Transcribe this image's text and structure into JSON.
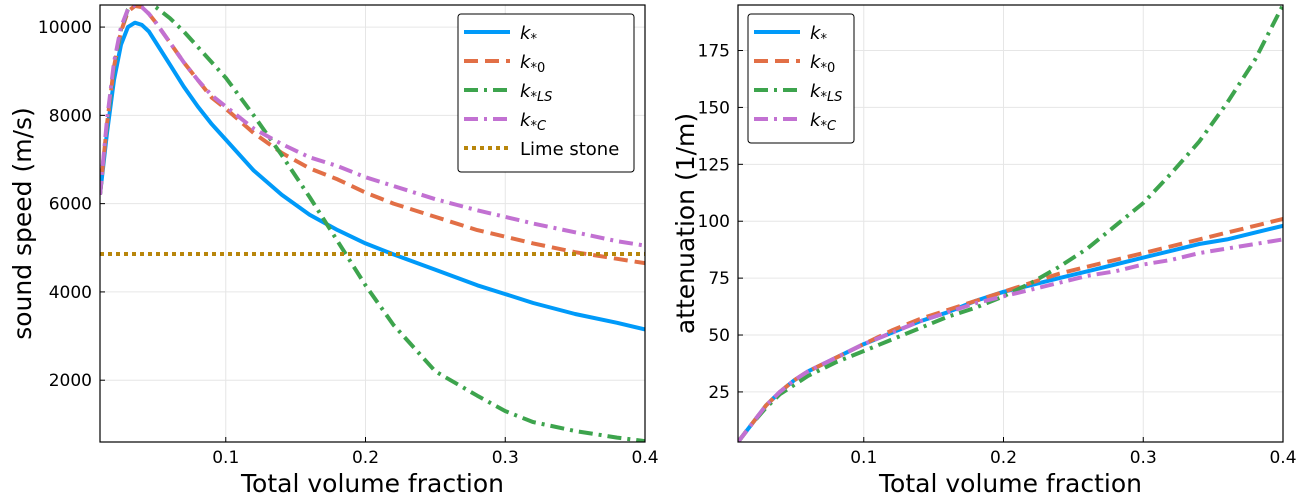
{
  "chart_data": [
    {
      "type": "line",
      "xlabel": "Total volume fraction",
      "ylabel": "sound speed (m/s)",
      "xlim": [
        0.01,
        0.4
      ],
      "ylim": [
        600,
        10500
      ],
      "xticks": [
        0.1,
        0.2,
        0.3,
        0.4
      ],
      "xtick_labels": [
        "0.1",
        "0.2",
        "0.3",
        "0.4"
      ],
      "yticks": [
        2000,
        4000,
        6000,
        8000,
        10000
      ],
      "ytick_labels": [
        "2000",
        "4000",
        "6000",
        "8000",
        "10000"
      ],
      "grid": true,
      "legend_position": "top-right",
      "series": [
        {
          "name": "k",
          "sub": "*",
          "color": "#009af9",
          "dash": "solid",
          "x": [
            0.01,
            0.015,
            0.02,
            0.025,
            0.03,
            0.035,
            0.04,
            0.045,
            0.05,
            0.06,
            0.07,
            0.08,
            0.09,
            0.1,
            0.12,
            0.14,
            0.16,
            0.18,
            0.2,
            0.22,
            0.25,
            0.28,
            0.3,
            0.32,
            0.35,
            0.38,
            0.4
          ],
          "y": [
            6200,
            7600,
            8800,
            9600,
            10000,
            10100,
            10050,
            9900,
            9650,
            9150,
            8650,
            8200,
            7800,
            7450,
            6750,
            6200,
            5750,
            5400,
            5100,
            4850,
            4500,
            4150,
            3950,
            3750,
            3500,
            3300,
            3150
          ]
        },
        {
          "name": "k",
          "sub": "*0",
          "color": "#e26f46",
          "dash": "dashed",
          "x": [
            0.01,
            0.015,
            0.02,
            0.025,
            0.03,
            0.035,
            0.04,
            0.045,
            0.05,
            0.06,
            0.07,
            0.08,
            0.09,
            0.1,
            0.12,
            0.14,
            0.16,
            0.18,
            0.2,
            0.22,
            0.25,
            0.28,
            0.3,
            0.32,
            0.35,
            0.38,
            0.4
          ],
          "y": [
            6200,
            7800,
            9100,
            9900,
            10350,
            10480,
            10450,
            10300,
            10100,
            9650,
            9200,
            8800,
            8400,
            8150,
            7600,
            7150,
            6800,
            6550,
            6250,
            6000,
            5700,
            5400,
            5250,
            5100,
            4900,
            4750,
            4650
          ]
        },
        {
          "name": "k",
          "sub": "*LS",
          "color": "#3da44d",
          "dash": "dashdot",
          "x": [
            0.01,
            0.015,
            0.02,
            0.025,
            0.03,
            0.035,
            0.04,
            0.045,
            0.05,
            0.06,
            0.07,
            0.08,
            0.09,
            0.1,
            0.12,
            0.14,
            0.16,
            0.18,
            0.2,
            0.22,
            0.25,
            0.28,
            0.3,
            0.32,
            0.35,
            0.38,
            0.4
          ],
          "y": [
            6200,
            7800,
            9100,
            9950,
            10400,
            10600,
            10650,
            10550,
            10450,
            10200,
            9900,
            9550,
            9200,
            8850,
            8000,
            7100,
            6150,
            5150,
            4150,
            3250,
            2200,
            1650,
            1300,
            1050,
            850,
            700,
            620
          ]
        },
        {
          "name": "k",
          "sub": "*C",
          "color": "#c271d2",
          "dash": "dashdot",
          "x": [
            0.01,
            0.015,
            0.02,
            0.025,
            0.03,
            0.035,
            0.04,
            0.045,
            0.05,
            0.06,
            0.07,
            0.08,
            0.09,
            0.1,
            0.12,
            0.14,
            0.16,
            0.18,
            0.2,
            0.22,
            0.25,
            0.28,
            0.3,
            0.32,
            0.35,
            0.38,
            0.4
          ],
          "y": [
            6200,
            7900,
            9200,
            10000,
            10400,
            10500,
            10450,
            10300,
            10100,
            9650,
            9200,
            8800,
            8450,
            8200,
            7700,
            7350,
            7050,
            6850,
            6600,
            6400,
            6100,
            5850,
            5700,
            5550,
            5350,
            5150,
            5050
          ]
        },
        {
          "name": "Lime stone",
          "sub": "",
          "color": "#b8860b",
          "dash": "dotted",
          "x": [
            0.01,
            0.4
          ],
          "y": [
            4860,
            4860
          ]
        }
      ]
    },
    {
      "type": "line",
      "xlabel": "Total volume fraction",
      "ylabel": "attenuation (1/m)",
      "xlim": [
        0.01,
        0.4
      ],
      "ylim": [
        3,
        195
      ],
      "xticks": [
        0.1,
        0.2,
        0.3,
        0.4
      ],
      "xtick_labels": [
        "0.1",
        "0.2",
        "0.3",
        "0.4"
      ],
      "yticks": [
        25,
        50,
        75,
        100,
        125,
        150,
        175
      ],
      "ytick_labels": [
        "25",
        "50",
        "75",
        "100",
        "125",
        "150",
        "175"
      ],
      "grid": true,
      "legend_position": "top-left",
      "series": [
        {
          "name": "k",
          "sub": "*",
          "color": "#009af9",
          "dash": "solid",
          "x": [
            0.01,
            0.02,
            0.03,
            0.04,
            0.05,
            0.06,
            0.08,
            0.1,
            0.12,
            0.14,
            0.16,
            0.18,
            0.2,
            0.22,
            0.24,
            0.26,
            0.28,
            0.3,
            0.32,
            0.34,
            0.36,
            0.38,
            0.4
          ],
          "y": [
            3,
            11,
            19,
            25,
            30,
            34,
            40,
            46,
            51,
            56,
            60,
            65,
            69,
            72,
            75,
            78,
            81,
            84,
            87,
            90,
            92,
            95,
            98
          ]
        },
        {
          "name": "k",
          "sub": "*0",
          "color": "#e26f46",
          "dash": "dashed",
          "x": [
            0.01,
            0.02,
            0.03,
            0.04,
            0.05,
            0.06,
            0.08,
            0.1,
            0.12,
            0.14,
            0.16,
            0.18,
            0.2,
            0.22,
            0.24,
            0.26,
            0.28,
            0.3,
            0.32,
            0.34,
            0.36,
            0.38,
            0.4
          ],
          "y": [
            3,
            11,
            19,
            25,
            30,
            34,
            40,
            46,
            52,
            57,
            61,
            65,
            69,
            73,
            77,
            80,
            83,
            86,
            89,
            92,
            95,
            98,
            101
          ]
        },
        {
          "name": "k",
          "sub": "*LS",
          "color": "#3da44d",
          "dash": "dashdot",
          "x": [
            0.01,
            0.02,
            0.03,
            0.04,
            0.05,
            0.06,
            0.08,
            0.1,
            0.12,
            0.14,
            0.16,
            0.18,
            0.2,
            0.22,
            0.24,
            0.26,
            0.28,
            0.3,
            0.32,
            0.34,
            0.36,
            0.38,
            0.4
          ],
          "y": [
            3,
            11,
            18,
            24,
            28,
            32,
            38,
            43,
            48,
            53,
            58,
            62,
            67,
            73,
            80,
            88,
            98,
            108,
            121,
            135,
            152,
            171,
            195
          ]
        },
        {
          "name": "k",
          "sub": "*C",
          "color": "#c271d2",
          "dash": "dashdot",
          "x": [
            0.01,
            0.02,
            0.03,
            0.04,
            0.05,
            0.06,
            0.08,
            0.1,
            0.12,
            0.14,
            0.16,
            0.18,
            0.2,
            0.22,
            0.24,
            0.26,
            0.28,
            0.3,
            0.32,
            0.34,
            0.36,
            0.38,
            0.4
          ],
          "y": [
            3,
            11,
            19,
            25,
            30,
            34,
            40,
            46,
            51,
            56,
            60,
            64,
            67,
            70,
            73,
            76,
            78,
            81,
            83,
            86,
            88,
            90,
            92
          ]
        }
      ]
    }
  ]
}
